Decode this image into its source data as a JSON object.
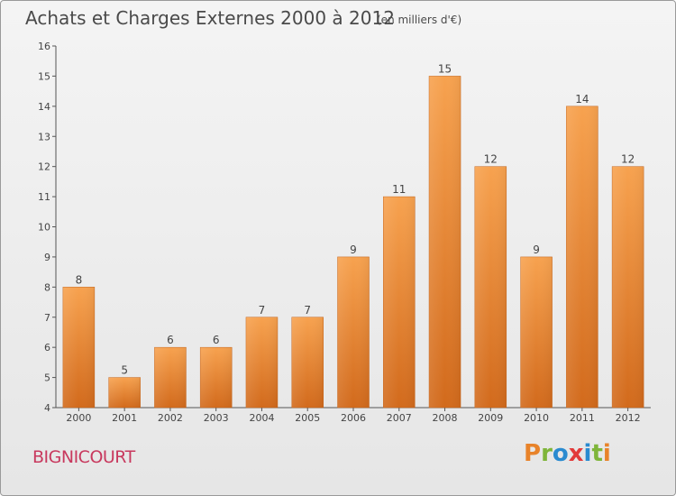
{
  "header": {
    "title": "Achats et Charges Externes 2000 à 2012",
    "unit": "(en milliers d'€)"
  },
  "footer": {
    "commune": "BIGNICOURT",
    "logo_text": "Proxiti"
  },
  "colors": {
    "bar_light": "#f7a24f",
    "bar_dark": "#d26a1c",
    "title": "#4a4a4a",
    "commune": "#c8395e",
    "logo_letters": [
      "#e8832a",
      "#7fb53a",
      "#2a8bd0",
      "#e23a3a",
      "#2a8bd0",
      "#7fb53a",
      "#e8832a"
    ]
  },
  "chart_data": {
    "type": "bar",
    "title": "Achats et Charges Externes 2000 à 2012",
    "subtitle": "(en milliers d'€)",
    "categories": [
      "2000",
      "2001",
      "2002",
      "2003",
      "2004",
      "2005",
      "2006",
      "2007",
      "2008",
      "2009",
      "2010",
      "2011",
      "2012"
    ],
    "values": [
      8,
      5,
      6,
      6,
      7,
      7,
      9,
      11,
      15,
      12,
      9,
      14,
      12
    ],
    "ylim": [
      4,
      16
    ],
    "yticks": [
      "4",
      "5",
      "6",
      "7",
      "8",
      "9",
      "10",
      "11",
      "12",
      "13",
      "14",
      "15",
      "16"
    ],
    "grid": false,
    "legend": "none"
  }
}
